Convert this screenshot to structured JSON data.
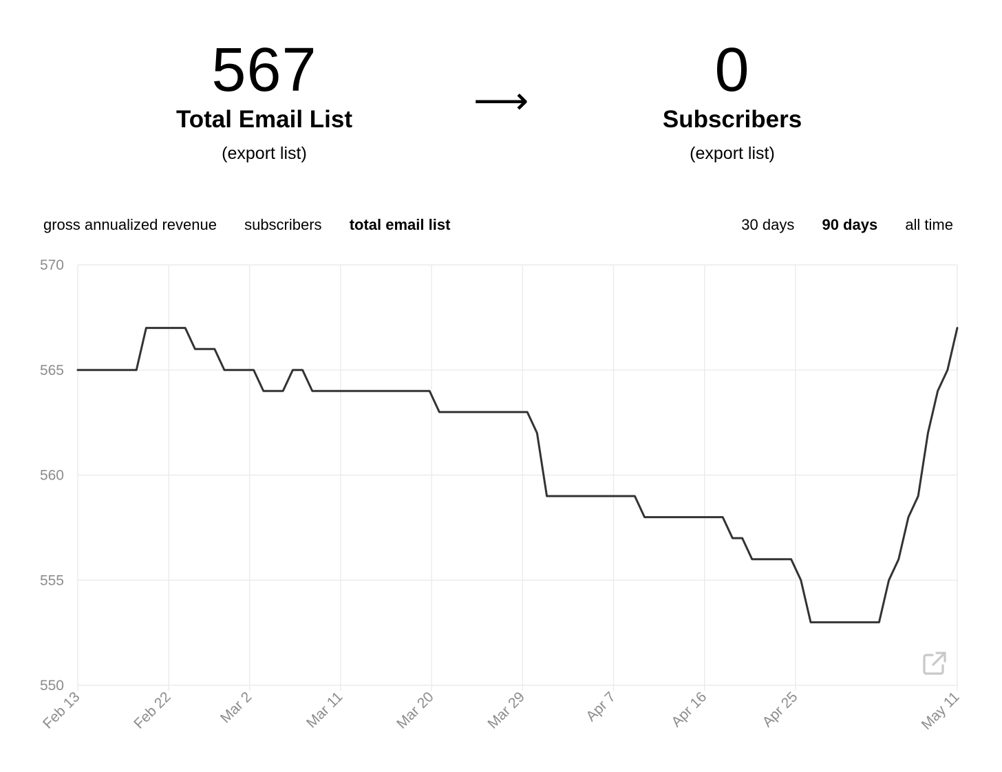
{
  "stats": {
    "left": {
      "number": "567",
      "label": "Total Email List",
      "link": "(export list)"
    },
    "arrow": "⟶",
    "right": {
      "number": "0",
      "label": "Subscribers",
      "link": "(export list)"
    }
  },
  "metric_tabs": [
    {
      "label": "gross annualized revenue",
      "active": false
    },
    {
      "label": "subscribers",
      "active": false
    },
    {
      "label": "total email list",
      "active": true
    }
  ],
  "range_tabs": [
    {
      "label": "30 days",
      "active": false
    },
    {
      "label": "90 days",
      "active": true
    },
    {
      "label": "all time",
      "active": false
    }
  ],
  "icons": {
    "expand": "external-link-icon"
  },
  "colors": {
    "line": "#333333",
    "grid": "#ececec",
    "tick": "#8c8c8c"
  },
  "chart_data": {
    "type": "line",
    "title": "",
    "xlabel": "",
    "ylabel": "",
    "x_start": "Feb 13",
    "x_end": "May 11",
    "ylim": [
      550,
      570
    ],
    "yticks": [
      550,
      555,
      560,
      565,
      570
    ],
    "xtick_labels": [
      "Feb 13",
      "Feb 22",
      "Mar 2",
      "Mar 11",
      "Mar 20",
      "Mar 29",
      "Apr 7",
      "Apr 16",
      "Apr 25",
      "May 11"
    ],
    "grid": true,
    "series": [
      {
        "values": [
          565,
          565,
          565,
          565,
          565,
          565,
          565,
          567,
          567,
          567,
          567,
          567,
          566,
          566,
          566,
          565,
          565,
          565,
          565,
          564,
          564,
          564,
          565,
          565,
          564,
          564,
          564,
          564,
          564,
          564,
          564,
          564,
          564,
          564,
          564,
          564,
          564,
          563,
          563,
          563,
          563,
          563,
          563,
          563,
          563,
          563,
          563,
          562,
          559,
          559,
          559,
          559,
          559,
          559,
          559,
          559,
          559,
          559,
          558,
          558,
          558,
          558,
          558,
          558,
          558,
          558,
          558,
          557,
          557,
          556,
          556,
          556,
          556,
          556,
          555,
          553,
          553,
          553,
          553,
          553,
          553,
          553,
          553,
          555,
          556,
          558,
          559,
          562,
          564,
          565,
          567
        ]
      }
    ]
  }
}
